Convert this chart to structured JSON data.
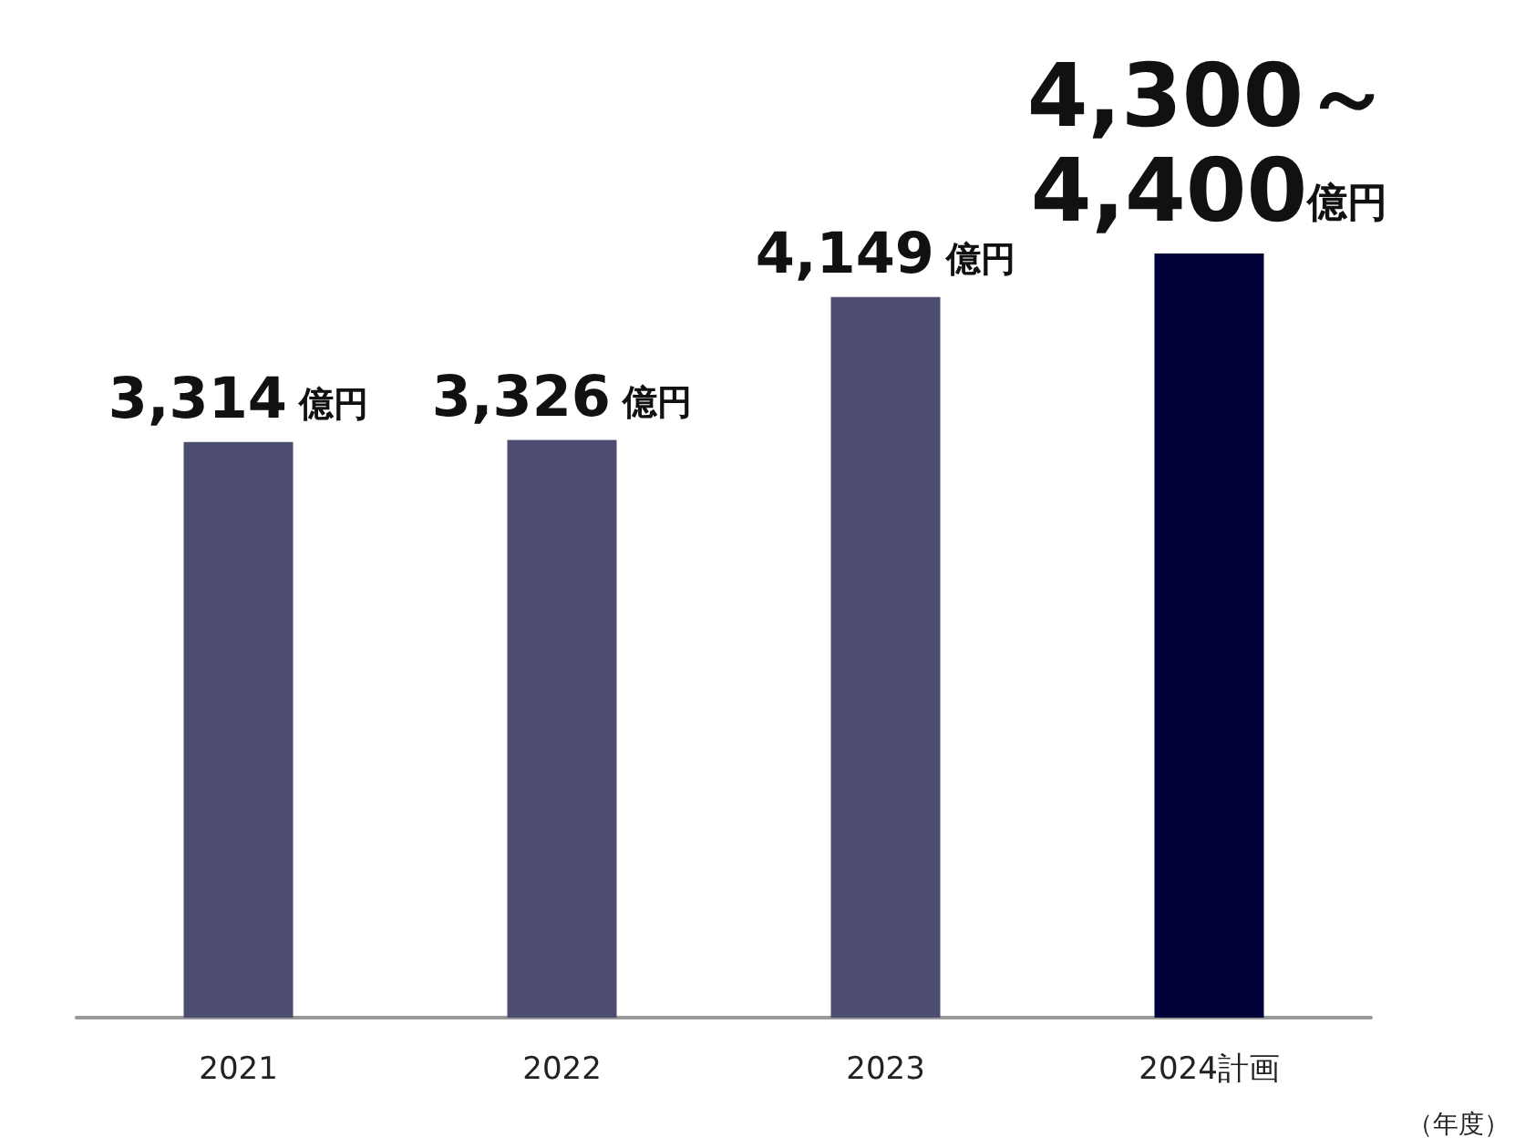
{
  "chart_data": {
    "type": "bar",
    "categories": [
      "2021",
      "2022",
      "2023",
      "2024計画"
    ],
    "values": [
      3314,
      3326,
      4149,
      4400
    ],
    "colors": [
      "#4d4d72",
      "#4d4d72",
      "#4d4d72",
      "#000038"
    ],
    "value_labels": [
      "3,314 億円",
      "3,326 億円",
      "4,149 億円",
      "4,300～4,400億円"
    ],
    "xlabel": "（年度）"
  }
}
